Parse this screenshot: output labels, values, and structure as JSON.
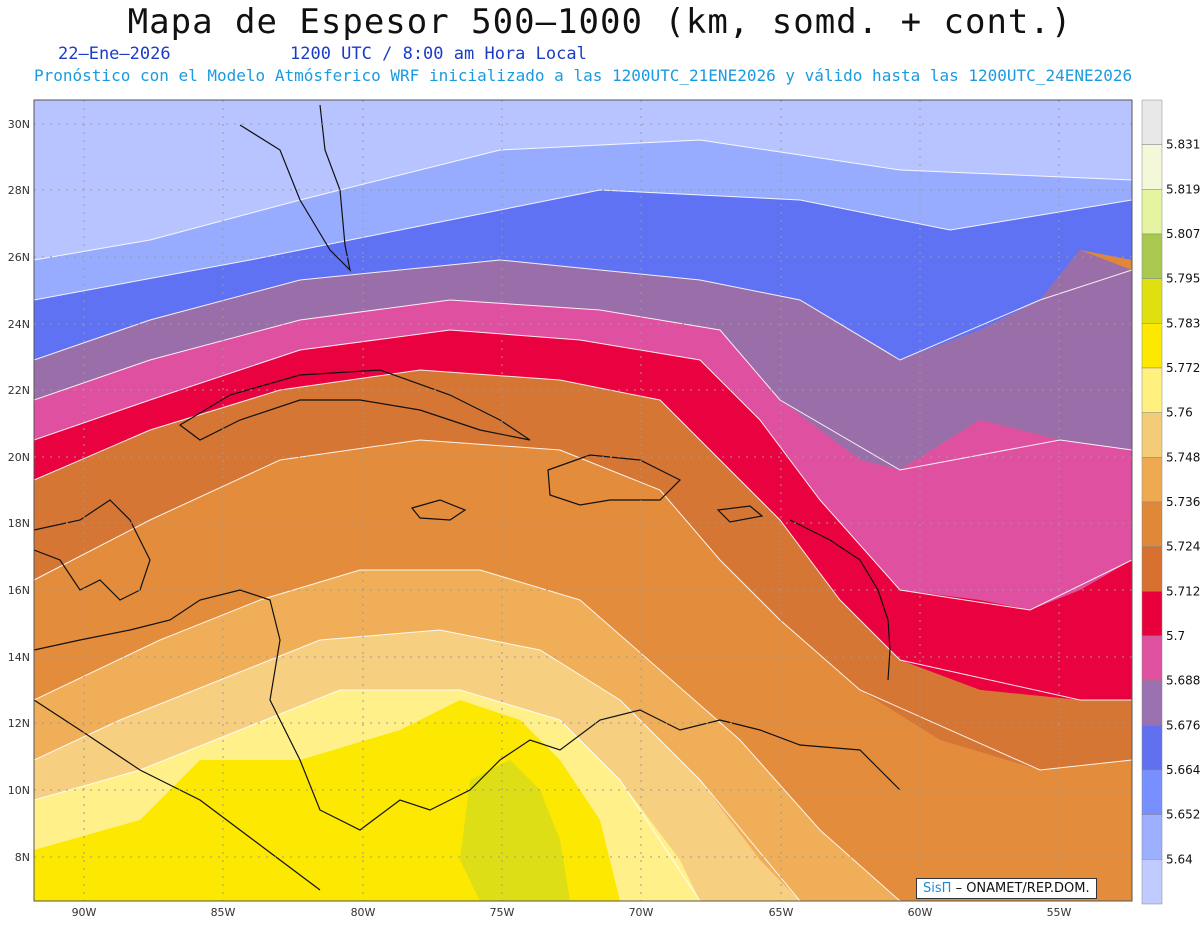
{
  "header": {
    "title": "Mapa de Espesor 500–1000 (km, somd. + cont.)",
    "date": "22–Ene–2026",
    "utc": "1200 UTC / 8:00 am Hora Local",
    "subtitle": "Pronóstico con el Modelo Atmósferico WRF inicializado a las 1200UTC_21ENE2026 y válido hasta las  1200UTC_24ENE2026"
  },
  "axes": {
    "lat_labels": [
      "30N",
      "28N",
      "26N",
      "24N",
      "22N",
      "20N",
      "18N",
      "16N",
      "14N",
      "12N",
      "10N",
      "8N"
    ],
    "lon_labels": [
      "90W",
      "85W",
      "80W",
      "75W",
      "70W",
      "65W",
      "60W",
      "55W"
    ]
  },
  "colorbar": {
    "levels": [
      "5.64",
      "5.652",
      "5.664",
      "5.676",
      "5.688",
      "5.7",
      "5.712",
      "5.724",
      "5.736",
      "5.748",
      "5.76",
      "5.772",
      "5.783",
      "5.795",
      "5.807",
      "5.819",
      "5.831"
    ],
    "colors": [
      "#c0ccff",
      "#9cb0ff",
      "#7890ff",
      "#6070f0",
      "#9a70b0",
      "#e050a0",
      "#e8003c",
      "#d87030",
      "#e08838",
      "#eeaa50",
      "#f4cc78",
      "#fff080",
      "#fce800",
      "#e0e010",
      "#a8c850",
      "#e4f4a0",
      "#f4f8d8",
      "#e8e8e8"
    ]
  },
  "credit": {
    "sis": "SisΠ",
    "text": "– ONAMET/REP.DOM."
  }
}
